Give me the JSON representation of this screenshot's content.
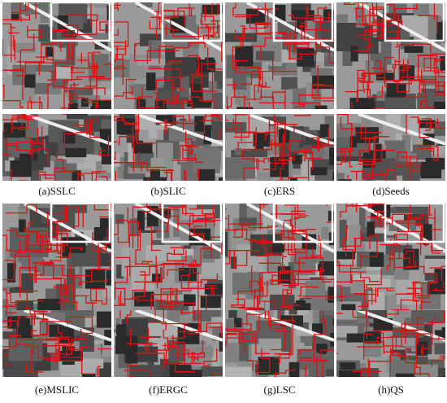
{
  "captions": [
    "(a)SSLC",
    "(b)SLIC",
    "(c)ERS",
    "(d)Seeds",
    "(e)MSLIC",
    "(f)ERGC",
    "(g)LSC",
    "(h)QS"
  ]
}
